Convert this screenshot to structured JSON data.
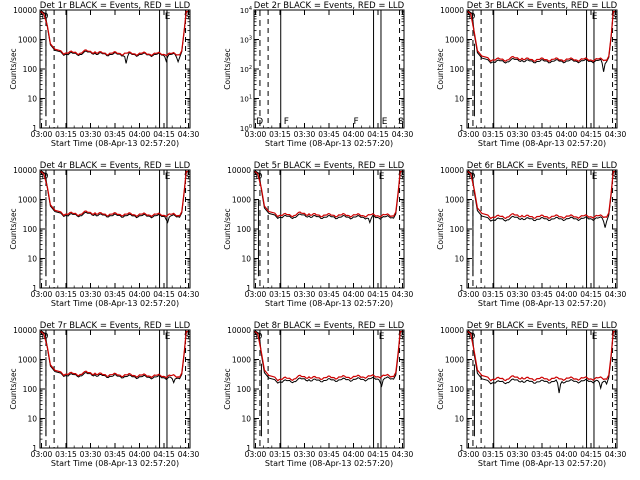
{
  "figure": {
    "xlabel": "Start Time (08-Apr-13 02:57:20)",
    "ylabel": "Counts/sec",
    "colors": {
      "events": "#000000",
      "lld": "#cc0000",
      "background": "#ffffff"
    },
    "x_ticks": [
      "03:00",
      "03:15",
      "03:30",
      "03:45",
      "04:00",
      "04:15",
      "04:30"
    ],
    "y_ticks": [
      "1",
      "10",
      "100",
      "1000",
      "10000"
    ],
    "y_ticks_empty": [
      "10^0",
      "10^1",
      "10^2",
      "10^3",
      "10^4"
    ],
    "markers": {
      "full": [
        {
          "text": "D"
        },
        {
          "text": "F"
        },
        {
          "text": "F"
        },
        {
          "text": "E"
        },
        {
          "text": "S"
        }
      ],
      "short": [
        {
          "text": "E"
        },
        {
          "text": "S"
        }
      ]
    }
  },
  "chart_data": [
    {
      "type": "line",
      "title": "Det 1r BLACK = Events, RED = LLD",
      "xlim": [
        0,
        101
      ],
      "ylim": [
        1,
        10000
      ],
      "yscale": "log",
      "vlines_solid": [
        18,
        80.5,
        85.5
      ],
      "vlines_dashed": [
        98
      ],
      "events_level": 330,
      "events_end": 300,
      "lld_level": 360,
      "lld_end": 320,
      "dips": [
        [
          58,
          0.5
        ],
        [
          85,
          0.3
        ],
        [
          93,
          0.4
        ]
      ],
      "left_dip": 4
    },
    {
      "type": "line",
      "title": "Det 2r BLACK = Events, RED = LLD",
      "xlim": [
        0,
        101
      ],
      "ylim": [
        1,
        10000
      ],
      "yscale": "log",
      "vlines_solid": [
        18,
        80.5,
        85.5
      ],
      "vlines_dashed": [
        98
      ],
      "events_level": null,
      "lld_level": null,
      "empty": true
    },
    {
      "type": "line",
      "title": "Det 3r BLACK = Events, RED = LLD",
      "xlim": [
        0,
        101
      ],
      "ylim": [
        1,
        10000
      ],
      "yscale": "log",
      "vlines_solid": [
        18,
        80.5,
        85.5
      ],
      "vlines_dashed": [
        98
      ],
      "events_level": 180,
      "events_end": 190,
      "lld_level": 210,
      "lld_end": 210,
      "dips": [
        [
          92,
          0.55
        ]
      ],
      "left_dip": 5
    },
    {
      "type": "line",
      "title": "Det 4r BLACK = Events, RED = LLD",
      "xlim": [
        0,
        101
      ],
      "ylim": [
        1,
        10000
      ],
      "yscale": "log",
      "vlines_solid": [
        18,
        80.5,
        85.5
      ],
      "vlines_dashed": [
        98
      ],
      "events_level": 300,
      "events_end": 270,
      "lld_level": 330,
      "lld_end": 300,
      "dips": [
        [
          86,
          0.35
        ]
      ],
      "left_dip": 4
    },
    {
      "type": "line",
      "title": "Det 5r BLACK = Events, RED = LLD",
      "xlim": [
        0,
        101
      ],
      "ylim": [
        1,
        10000
      ],
      "yscale": "log",
      "vlines_solid": [
        18,
        80.5,
        85.5
      ],
      "vlines_dashed": [
        98
      ],
      "events_level": 260,
      "events_end": 250,
      "lld_level": 300,
      "lld_end": 290,
      "dips": [
        [
          78,
          0.35
        ]
      ],
      "left_dip": 3
    },
    {
      "type": "line",
      "title": "Det 6r BLACK = Events, RED = LLD",
      "xlim": [
        0,
        101
      ],
      "ylim": [
        1,
        10000
      ],
      "yscale": "log",
      "vlines_solid": [
        18,
        80.5,
        85.5
      ],
      "vlines_dashed": [
        98
      ],
      "events_level": 210,
      "events_end": 230,
      "lld_level": 260,
      "lld_end": 270,
      "dips": [
        [
          93,
          0.5
        ]
      ],
      "left_dip": 4
    },
    {
      "type": "line",
      "title": "Det 7r BLACK = Events, RED = LLD",
      "xlim": [
        0,
        101
      ],
      "ylim": [
        1,
        10000
      ],
      "yscale": "log",
      "vlines_solid": [
        18,
        80.5,
        85.5
      ],
      "vlines_dashed": [
        98
      ],
      "events_level": 300,
      "events_end": 240,
      "lld_level": 330,
      "lld_end": 270,
      "dips": [
        [
          90,
          0.4
        ]
      ],
      "left_dip": 4
    },
    {
      "type": "line",
      "title": "Det 8r BLACK = Events, RED = LLD",
      "xlim": [
        0,
        101
      ],
      "ylim": [
        1,
        10000
      ],
      "yscale": "log",
      "vlines_solid": [
        18,
        80.5,
        85.5
      ],
      "vlines_dashed": [
        98
      ],
      "events_level": 180,
      "events_end": 230,
      "lld_level": 220,
      "lld_end": 280,
      "dips": [
        [
          86,
          0.4
        ]
      ],
      "left_dip": 5
    },
    {
      "type": "line",
      "title": "Det 9r BLACK = Events, RED = LLD",
      "xlim": [
        0,
        101
      ],
      "ylim": [
        1,
        10000
      ],
      "yscale": "log",
      "vlines_solid": [
        18,
        80.5,
        85.5
      ],
      "vlines_dashed": [
        98
      ],
      "events_level": 170,
      "events_end": 190,
      "lld_level": 220,
      "lld_end": 230,
      "dips": [
        [
          62,
          0.6
        ],
        [
          90,
          0.5
        ],
        [
          95,
          0.5
        ]
      ],
      "left_dip": 5
    }
  ]
}
